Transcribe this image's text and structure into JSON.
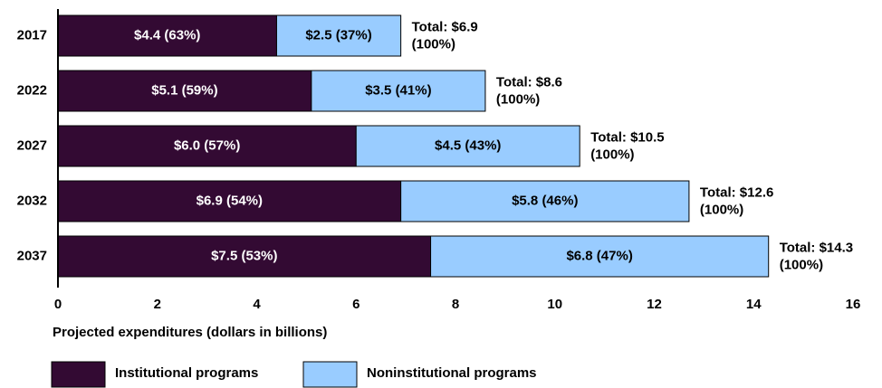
{
  "chart_data": {
    "type": "stacked-barh",
    "categories": [
      "2017",
      "2022",
      "2027",
      "2032",
      "2037"
    ],
    "series": [
      {
        "name": "Institutional programs",
        "color": "#330a33",
        "text_color": "#ffffff",
        "values": [
          4.4,
          5.1,
          6.0,
          6.9,
          7.5
        ],
        "value_labels": [
          "$4.4 (63%)",
          "$5.1 (59%)",
          "$6.0 (57%)",
          "$6.9 (54%)",
          "$7.5 (53%)"
        ]
      },
      {
        "name": "Noninstitutional programs",
        "color": "#99ccff",
        "text_color": "#000000",
        "values": [
          2.5,
          3.5,
          4.5,
          5.8,
          6.8
        ],
        "value_labels": [
          "$2.5 (37%)",
          "$3.5 (41%)",
          "$4.5 (43%)",
          "$5.8 (46%)",
          "$6.8 (47%)"
        ]
      }
    ],
    "total_labels": [
      [
        "Total: $6.9",
        "(100%)"
      ],
      [
        "Total: $8.6",
        "(100%)"
      ],
      [
        "Total: $10.5",
        "(100%)"
      ],
      [
        "Total: $12.6",
        "(100%)"
      ],
      [
        "Total: $14.3",
        "(100%)"
      ]
    ],
    "xlabel": "Projected expenditures (dollars in billions)",
    "xlim": [
      0,
      16
    ],
    "xticks": [
      0,
      2,
      4,
      6,
      8,
      10,
      12,
      14,
      16
    ],
    "grid": false
  }
}
